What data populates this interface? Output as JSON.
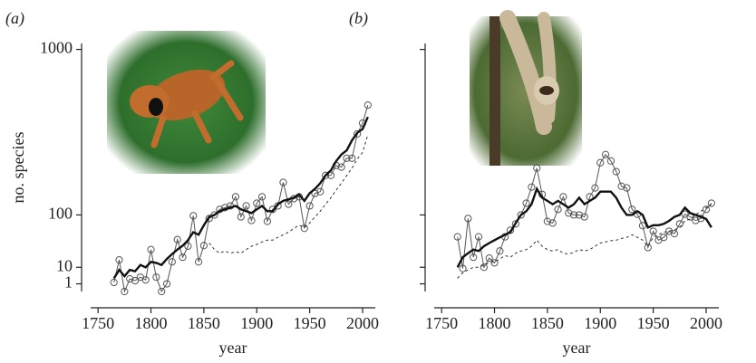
{
  "chart_data": [
    {
      "type": "line",
      "panel_label": "(a)",
      "xlabel": "year",
      "ylabel": "no. species",
      "yscale": "sqrt",
      "show_ytick_labels": true,
      "xlim": [
        1743,
        2012
      ],
      "xticks": [
        1750,
        1800,
        1850,
        1900,
        1950,
        2000
      ],
      "ylim": [
        0,
        1050
      ],
      "yticks": [
        1,
        10,
        100,
        1000
      ],
      "x": [
        1765,
        1770,
        1775,
        1780,
        1785,
        1790,
        1795,
        1800,
        1805,
        1810,
        1815,
        1820,
        1825,
        1830,
        1835,
        1840,
        1845,
        1850,
        1855,
        1860,
        1865,
        1870,
        1875,
        1880,
        1885,
        1890,
        1895,
        1900,
        1905,
        1910,
        1915,
        1920,
        1925,
        1930,
        1935,
        1940,
        1945,
        1950,
        1955,
        1960,
        1965,
        1970,
        1975,
        1980,
        1985,
        1990,
        1995,
        2000,
        2005
      ],
      "series": [
        {
          "style": "markers",
          "color": "#555555",
          "values": [
            1.4,
            17,
            0,
            2.7,
            2,
            3.5,
            2.3,
            30,
            3.5,
            0,
            1,
            15,
            46,
            20,
            35,
            98,
            15,
            36,
            91,
            100,
            115,
            120,
            125,
            153,
            95,
            125,
            86,
            133,
            153,
            84,
            115,
            125,
            203,
            130,
            147,
            153,
            68,
            125,
            164,
            170,
            230,
            230,
            271,
            264,
            303,
            303,
            424,
            484,
            593
          ]
        },
        {
          "style": "thick",
          "color": "#111111",
          "values": [
            3,
            8,
            4,
            8,
            7,
            12,
            10,
            15,
            14,
            12,
            18,
            24,
            30,
            36,
            45,
            60,
            55,
            75,
            95,
            100,
            110,
            115,
            120,
            125,
            115,
            110,
            105,
            115,
            125,
            110,
            110,
            130,
            140,
            145,
            150,
            160,
            140,
            165,
            180,
            200,
            230,
            250,
            290,
            320,
            340,
            390,
            430,
            450,
            520
          ]
        },
        {
          "style": "dashed",
          "color": "#333333",
          "values": [
            null,
            null,
            null,
            null,
            null,
            null,
            null,
            null,
            null,
            null,
            null,
            null,
            null,
            null,
            null,
            null,
            null,
            null,
            40,
            30,
            25,
            28,
            25,
            27,
            25,
            30,
            35,
            38,
            42,
            45,
            45,
            50,
            55,
            60,
            68,
            75,
            70,
            80,
            95,
            110,
            130,
            150,
            175,
            200,
            230,
            260,
            300,
            330,
            420
          ]
        }
      ]
    },
    {
      "type": "line",
      "panel_label": "(b)",
      "xlabel": "year",
      "yscale": "sqrt",
      "show_ytick_labels": false,
      "xlim": [
        1743,
        2012
      ],
      "xticks": [
        1750,
        1800,
        1850,
        1900,
        1950,
        2000
      ],
      "ylim": [
        0,
        1050
      ],
      "yticks": [
        1,
        10,
        100,
        1000
      ],
      "x": [
        1765,
        1770,
        1775,
        1780,
        1785,
        1790,
        1795,
        1800,
        1805,
        1810,
        1815,
        1820,
        1825,
        1830,
        1835,
        1840,
        1845,
        1850,
        1855,
        1860,
        1865,
        1870,
        1875,
        1880,
        1885,
        1890,
        1895,
        1900,
        1905,
        1910,
        1915,
        1920,
        1925,
        1930,
        1935,
        1940,
        1945,
        1950,
        1955,
        1960,
        1965,
        1970,
        1975,
        1980,
        1985,
        1990,
        1995,
        2000,
        2005
      ],
      "series": [
        {
          "style": "markers",
          "color": "#555555",
          "values": [
            51,
            9,
            91,
            20,
            51,
            10,
            19,
            14,
            28,
            51,
            64,
            78,
            100,
            133,
            186,
            260,
            161,
            84,
            80,
            115,
            153,
            105,
            100,
            100,
            95,
            153,
            183,
            283,
            320,
            291,
            245,
            189,
            183,
            115,
            102,
            74,
            33,
            62,
            45,
            50,
            62,
            57,
            78,
            102,
            95,
            86,
            91,
            115,
            133
          ]
        },
        {
          "style": "thick",
          "color": "#111111",
          "values": [
            10,
            20,
            25,
            30,
            28,
            35,
            40,
            45,
            50,
            55,
            60,
            80,
            100,
            110,
            130,
            180,
            150,
            140,
            130,
            140,
            130,
            120,
            130,
            150,
            130,
            140,
            150,
            170,
            170,
            170,
            150,
            120,
            100,
            100,
            110,
            100,
            70,
            75,
            75,
            78,
            85,
            95,
            100,
            120,
            105,
            100,
            95,
            90,
            70
          ]
        },
        {
          "style": "dashed",
          "color": "#333333",
          "values": [
            3,
            6,
            8,
            10,
            10,
            12,
            14,
            15,
            18,
            22,
            20,
            25,
            28,
            30,
            35,
            45,
            35,
            30,
            28,
            30,
            25,
            24,
            26,
            30,
            28,
            30,
            35,
            40,
            42,
            44,
            45,
            48,
            50,
            55,
            50,
            45,
            35,
            50,
            55,
            60,
            62,
            65,
            70,
            85,
            90,
            100,
            110,
            120,
            130
          ]
        }
      ]
    }
  ]
}
